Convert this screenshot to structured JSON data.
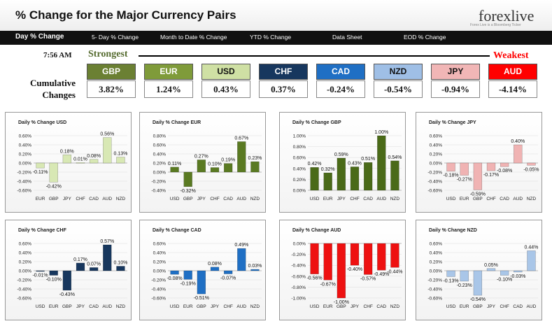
{
  "header": {
    "title": "% Change for the Major Currency Pairs",
    "logo_text": "forexlive",
    "logo_subtitle": "Forex Live is a Bloomberg Ticker"
  },
  "nav": [
    {
      "label": "Day % Change",
      "active": true
    },
    {
      "label": "5- Day % Change",
      "active": false
    },
    {
      "label": "Month to Date % Change",
      "active": false
    },
    {
      "label": "YTD % Change",
      "active": false
    },
    {
      "label": "Data Sheet",
      "active": false
    },
    {
      "label": "EOD % Change",
      "active": false
    }
  ],
  "time": "7:56 AM",
  "strongest_label": "Strongest",
  "weakest_label": "Weakest",
  "cumulative_label": {
    "line1": "Cumulative",
    "line2": "Changes"
  },
  "currencies": [
    {
      "code": "GBP",
      "value": "3.82%",
      "bg": "#6b8033",
      "fg": "#ffffff"
    },
    {
      "code": "EUR",
      "value": "1.24%",
      "bg": "#7f9b3a",
      "fg": "#ffffff"
    },
    {
      "code": "USD",
      "value": "0.43%",
      "bg": "#cfe0a4",
      "fg": "#111111"
    },
    {
      "code": "CHF",
      "value": "0.37%",
      "bg": "#17375e",
      "fg": "#ffffff"
    },
    {
      "code": "CAD",
      "value": "-0.24%",
      "bg": "#1f6fc4",
      "fg": "#ffffff"
    },
    {
      "code": "NZD",
      "value": "-0.54%",
      "bg": "#9fbfe6",
      "fg": "#111111"
    },
    {
      "code": "JPY",
      "value": "-0.94%",
      "bg": "#f1b6b6",
      "fg": "#111111"
    },
    {
      "code": "AUD",
      "value": "-4.14%",
      "bg": "#ff0000",
      "fg": "#ffffff"
    }
  ],
  "chart_data": [
    {
      "type": "bar",
      "title": "Daily % Change USD",
      "categories": [
        "EUR",
        "GBP",
        "JPY",
        "CHF",
        "CAD",
        "AUD",
        "NZD"
      ],
      "values": [
        -0.11,
        -0.42,
        0.18,
        0.01,
        0.08,
        0.56,
        0.13
      ],
      "labels": [
        "-0.11%",
        "-0.42%",
        "0.18%",
        "0.01%",
        "0.08%",
        "0.56%",
        "0.13%"
      ],
      "yticks": [
        "0.60%",
        "0.40%",
        "0.20%",
        "0.00%",
        "-0.20%",
        "-0.40%",
        "-0.60%"
      ],
      "ylim": [
        -0.6,
        0.6
      ],
      "color": "#d8e8b4"
    },
    {
      "type": "bar",
      "title": "Daily % Change EUR",
      "categories": [
        "USD",
        "GBP",
        "JPY",
        "CHF",
        "CAD",
        "AUD",
        "NZD"
      ],
      "values": [
        0.11,
        -0.32,
        0.27,
        0.1,
        0.19,
        0.67,
        0.23
      ],
      "labels": [
        "0.11%",
        "-0.32%",
        "0.27%",
        "0.10%",
        "0.19%",
        "0.67%",
        "0.23%"
      ],
      "yticks": [
        "0.80%",
        "0.60%",
        "0.40%",
        "0.20%",
        "0.00%",
        "-0.20%",
        "-0.40%"
      ],
      "ylim": [
        -0.4,
        0.8
      ],
      "color": "#5a7a22"
    },
    {
      "type": "bar",
      "title": "Daily % Change GBP",
      "categories": [
        "USD",
        "EUR",
        "JPY",
        "CHF",
        "CAD",
        "AUD",
        "NZD"
      ],
      "values": [
        0.42,
        0.32,
        0.59,
        0.43,
        0.51,
        1.0,
        0.54
      ],
      "labels": [
        "0.42%",
        "0.32%",
        "0.59%",
        "0.43%",
        "0.51%",
        "1.00%",
        "0.54%"
      ],
      "yticks": [
        "1.00%",
        "0.80%",
        "0.60%",
        "0.40%",
        "0.20%",
        "0.00%"
      ],
      "ylim": [
        0,
        1.0
      ],
      "color": "#4a6a18"
    },
    {
      "type": "bar",
      "title": "Daily % Change JPY",
      "categories": [
        "USD",
        "EUR",
        "GBP",
        "CHF",
        "CAD",
        "AUD",
        "NZD"
      ],
      "values": [
        -0.18,
        -0.27,
        -0.59,
        -0.17,
        -0.08,
        0.4,
        -0.05
      ],
      "labels": [
        "-0.18%",
        "-0.27%",
        "-0.59%",
        "-0.17%",
        "-0.08%",
        "0.40%",
        "-0.05%"
      ],
      "yticks": [
        "0.60%",
        "0.40%",
        "0.20%",
        "0.00%",
        "-0.20%",
        "-0.40%",
        "-0.60%"
      ],
      "ylim": [
        -0.6,
        0.6
      ],
      "color": "#f0b3b3"
    },
    {
      "type": "bar",
      "title": "Daily % Change CHF",
      "categories": [
        "USD",
        "EUR",
        "GBP",
        "JPY",
        "CAD",
        "AUD",
        "NZD"
      ],
      "values": [
        -0.01,
        -0.1,
        -0.43,
        0.17,
        0.07,
        0.57,
        0.1
      ],
      "labels": [
        "-0.01%",
        "-0.10%",
        "-0.43%",
        "0.17%",
        "0.07%",
        "0.57%",
        "0.10%"
      ],
      "yticks": [
        "0.60%",
        "0.40%",
        "0.20%",
        "0.00%",
        "-0.20%",
        "-0.40%",
        "-0.60%"
      ],
      "ylim": [
        -0.6,
        0.6
      ],
      "color": "#17375e"
    },
    {
      "type": "bar",
      "title": "Daily % Change CAD",
      "categories": [
        "USD",
        "EUR",
        "GBP",
        "JPY",
        "CHF",
        "AUD",
        "NZD"
      ],
      "values": [
        -0.08,
        -0.19,
        -0.51,
        0.08,
        -0.07,
        0.49,
        0.03
      ],
      "labels": [
        "-0.08%",
        "-0.19%",
        "-0.51%",
        "0.08%",
        "-0.07%",
        "0.49%",
        "0.03%"
      ],
      "yticks": [
        "0.60%",
        "0.40%",
        "0.20%",
        "0.00%",
        "-0.20%",
        "-0.40%",
        "-0.60%"
      ],
      "ylim": [
        -0.6,
        0.6
      ],
      "color": "#1f6fc4"
    },
    {
      "type": "bar",
      "title": "Daily % Change AUD",
      "categories": [
        "USD",
        "EUR",
        "GBP",
        "JPY",
        "CHF",
        "CAD",
        "NZD"
      ],
      "values": [
        -0.56,
        -0.67,
        -1.0,
        -0.4,
        -0.57,
        -0.49,
        -0.44
      ],
      "labels": [
        "-0.56%",
        "-0.67%",
        "-1.00%",
        "-0.40%",
        "-0.57%",
        "-0.49%",
        "-0.44%"
      ],
      "yticks": [
        "0.00%",
        "-0.20%",
        "-0.40%",
        "-0.60%",
        "-0.80%",
        "-1.00%"
      ],
      "ylim": [
        -1.0,
        0
      ],
      "color": "#ee1111"
    },
    {
      "type": "bar",
      "title": "Daily % Change NZD",
      "categories": [
        "USD",
        "EUR",
        "GBP",
        "JPY",
        "CHF",
        "CAD",
        "AUD"
      ],
      "values": [
        -0.13,
        -0.23,
        -0.54,
        0.05,
        -0.1,
        -0.03,
        0.44
      ],
      "labels": [
        "-0.13%",
        "-0.23%",
        "-0.54%",
        "0.05%",
        "-0.10%",
        "-0.03%",
        "0.44%"
      ],
      "yticks": [
        "0.60%",
        "0.40%",
        "0.20%",
        "0.00%",
        "-0.20%",
        "-0.40%",
        "-0.60%"
      ],
      "ylim": [
        -0.6,
        0.6
      ],
      "color": "#a9c6e8"
    }
  ]
}
